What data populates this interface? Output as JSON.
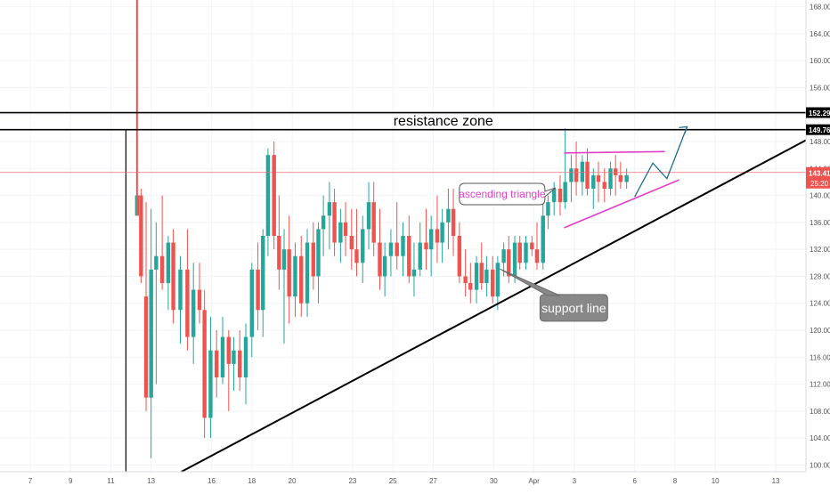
{
  "chart_data": {
    "type": "candlestick",
    "ylim": [
      99,
      169
    ],
    "y_ticks": [
      100,
      104,
      108,
      112,
      116,
      120,
      124,
      128,
      132,
      136,
      140,
      144,
      148,
      152,
      156,
      160,
      164,
      168
    ],
    "y_tick_labels": [
      "100.00",
      "104.00",
      "108.00",
      "112.00",
      "116.00",
      "120.00",
      "124.00",
      "128.00",
      "132.00",
      "136.00",
      "140.00",
      "144.00",
      "148.00",
      "152.00",
      "156.00",
      "160.00",
      "164.00",
      "168.00"
    ],
    "x_ticks": [
      {
        "label": "7",
        "x": 0
      },
      {
        "label": "9",
        "x": 2
      },
      {
        "label": "11",
        "x": 4
      },
      {
        "label": "13",
        "x": 6
      },
      {
        "label": "16",
        "x": 9
      },
      {
        "label": "18",
        "x": 11
      },
      {
        "label": "20",
        "x": 13
      },
      {
        "label": "23",
        "x": 16
      },
      {
        "label": "25",
        "x": 18
      },
      {
        "label": "27",
        "x": 20
      },
      {
        "label": "30",
        "x": 23
      },
      {
        "label": "Apr",
        "x": 25
      },
      {
        "label": "3",
        "x": 27
      },
      {
        "label": "6",
        "x": 30
      },
      {
        "label": "8",
        "x": 32
      },
      {
        "label": "10",
        "x": 34
      },
      {
        "label": "13",
        "x": 37
      }
    ],
    "xlim": [
      -1.5,
      38.5
    ],
    "series": [
      {
        "candles": [
          [
            5.3,
            137,
            150,
            137,
            140
          ],
          [
            5.5,
            140,
            141,
            127,
            128
          ],
          [
            5.75,
            125,
            139,
            108,
            110
          ],
          [
            6.0,
            110,
            138,
            101,
            129
          ],
          [
            6.25,
            129,
            136,
            112,
            131
          ],
          [
            6.55,
            131,
            140,
            126,
            127
          ],
          [
            6.85,
            127,
            134,
            123,
            133
          ],
          [
            7.1,
            133,
            135,
            121,
            123
          ],
          [
            7.45,
            123,
            131,
            118,
            129
          ],
          [
            7.8,
            129,
            135,
            117,
            119
          ],
          [
            8.1,
            119,
            130,
            115,
            126
          ],
          [
            8.4,
            126,
            130,
            121,
            123
          ],
          [
            8.65,
            123,
            126,
            104,
            107
          ],
          [
            8.95,
            107,
            122,
            104,
            117
          ],
          [
            9.25,
            117,
            120,
            110,
            113
          ],
          [
            9.55,
            113,
            122,
            112,
            119
          ],
          [
            9.85,
            119,
            120,
            108,
            115
          ],
          [
            10.1,
            115,
            119,
            111,
            117
          ],
          [
            10.4,
            117,
            120,
            111,
            113
          ],
          [
            10.7,
            113,
            121,
            109,
            119
          ],
          [
            11.0,
            119,
            130,
            116,
            129
          ],
          [
            11.3,
            129,
            133,
            120,
            123
          ],
          [
            11.55,
            123,
            135,
            119,
            134
          ],
          [
            11.8,
            134,
            147,
            131,
            146
          ],
          [
            12.1,
            146,
            148,
            132,
            134
          ],
          [
            12.35,
            134,
            140,
            126,
            129
          ],
          [
            12.6,
            129,
            135,
            118,
            132
          ],
          [
            12.85,
            132,
            137,
            121,
            125
          ],
          [
            13.15,
            125,
            133,
            122,
            131
          ],
          [
            13.45,
            131,
            134,
            122,
            124
          ],
          [
            13.75,
            124,
            135,
            122,
            133
          ],
          [
            14.05,
            133,
            136,
            126,
            128
          ],
          [
            14.3,
            128,
            136,
            124,
            135
          ],
          [
            14.55,
            135,
            140,
            131,
            137
          ],
          [
            14.85,
            137,
            142,
            132,
            139
          ],
          [
            15.1,
            139,
            141,
            131,
            133
          ],
          [
            15.4,
            133,
            138,
            130,
            136
          ],
          [
            15.65,
            136,
            139,
            131,
            134
          ],
          [
            15.95,
            134,
            138,
            129,
            132
          ],
          [
            16.2,
            132,
            138,
            128,
            130
          ],
          [
            16.5,
            130,
            137,
            127,
            135
          ],
          [
            16.8,
            135,
            142,
            132,
            139
          ],
          [
            17.05,
            139,
            142,
            131,
            133
          ],
          [
            17.35,
            133,
            138,
            126,
            128
          ],
          [
            17.6,
            128,
            133,
            125,
            131
          ],
          [
            17.9,
            131,
            135,
            128,
            133
          ],
          [
            18.2,
            133,
            139,
            129,
            131
          ],
          [
            18.5,
            131,
            136,
            128,
            134
          ],
          [
            18.8,
            134,
            137,
            127,
            128
          ],
          [
            19.05,
            128,
            133,
            125,
            129
          ]
        ]
      },
      {
        "candles": [
          [
            19.35,
            129,
            136,
            128,
            133
          ],
          [
            19.65,
            133,
            138,
            129,
            132
          ],
          [
            19.9,
            132,
            137,
            128,
            135
          ],
          [
            20.2,
            135,
            140,
            130,
            133
          ],
          [
            20.45,
            133,
            138,
            130,
            136
          ],
          [
            20.75,
            136,
            141,
            132,
            138
          ],
          [
            21.0,
            138,
            141,
            131,
            134
          ],
          [
            21.3,
            134,
            136,
            127,
            128
          ],
          [
            21.6,
            128,
            132,
            125,
            127
          ],
          [
            21.85,
            127,
            130,
            124,
            126
          ],
          [
            22.15,
            126,
            131,
            124,
            130
          ],
          [
            22.4,
            130,
            133,
            126,
            127
          ],
          [
            22.65,
            127,
            131,
            125,
            129
          ],
          [
            22.95,
            129,
            131,
            124,
            125
          ],
          [
            23.2,
            125,
            131,
            123,
            130
          ],
          [
            23.5,
            130,
            133,
            128,
            132
          ],
          [
            23.75,
            132,
            134,
            127,
            128
          ],
          [
            24.05,
            128,
            134,
            127,
            133
          ],
          [
            24.3,
            133,
            134,
            129,
            130
          ],
          [
            24.6,
            130,
            134,
            129,
            133
          ],
          [
            24.9,
            133,
            134,
            131,
            132
          ],
          [
            25.15,
            132,
            136,
            129,
            130
          ],
          [
            25.45,
            130,
            139,
            129,
            137
          ],
          [
            25.7,
            137,
            140,
            135,
            139
          ],
          [
            26.0,
            139,
            142,
            137,
            141
          ],
          [
            26.3,
            141,
            143,
            137,
            139
          ],
          [
            26.55,
            139,
            150,
            138,
            142
          ],
          [
            26.85,
            142,
            146,
            139,
            144
          ],
          [
            27.1,
            144,
            148,
            140,
            142
          ],
          [
            27.4,
            142,
            146,
            140,
            145
          ],
          [
            27.65,
            145,
            147,
            140,
            141
          ],
          [
            27.95,
            141,
            144,
            138,
            143
          ],
          [
            28.2,
            143,
            145,
            139,
            142
          ],
          [
            28.5,
            142,
            144,
            139,
            141
          ],
          [
            28.8,
            141,
            145,
            140,
            144
          ],
          [
            29.05,
            144,
            146,
            140,
            143
          ],
          [
            29.3,
            143,
            145,
            141,
            142
          ],
          [
            29.6,
            142,
            144,
            141,
            143
          ]
        ]
      }
    ],
    "levels": [
      {
        "name": "resistance-top",
        "price": 152.29,
        "label": "152.29"
      },
      {
        "name": "resistance-bottom",
        "price": 149.76,
        "label": "149.76"
      },
      {
        "name": "current-price",
        "price": 143.41,
        "label": "143.41",
        "sublabel": "25:20"
      }
    ],
    "annotations": {
      "resistance_label": "resistance zone",
      "triangle_label": "ascending triangle",
      "support_label": "support line"
    },
    "colors": {
      "up": "#26a69a",
      "down": "#ef5350",
      "price_line": "#f06d6d",
      "triangle": "#e040c8",
      "projection": "#1f6e8c",
      "lines": "#000000"
    }
  }
}
